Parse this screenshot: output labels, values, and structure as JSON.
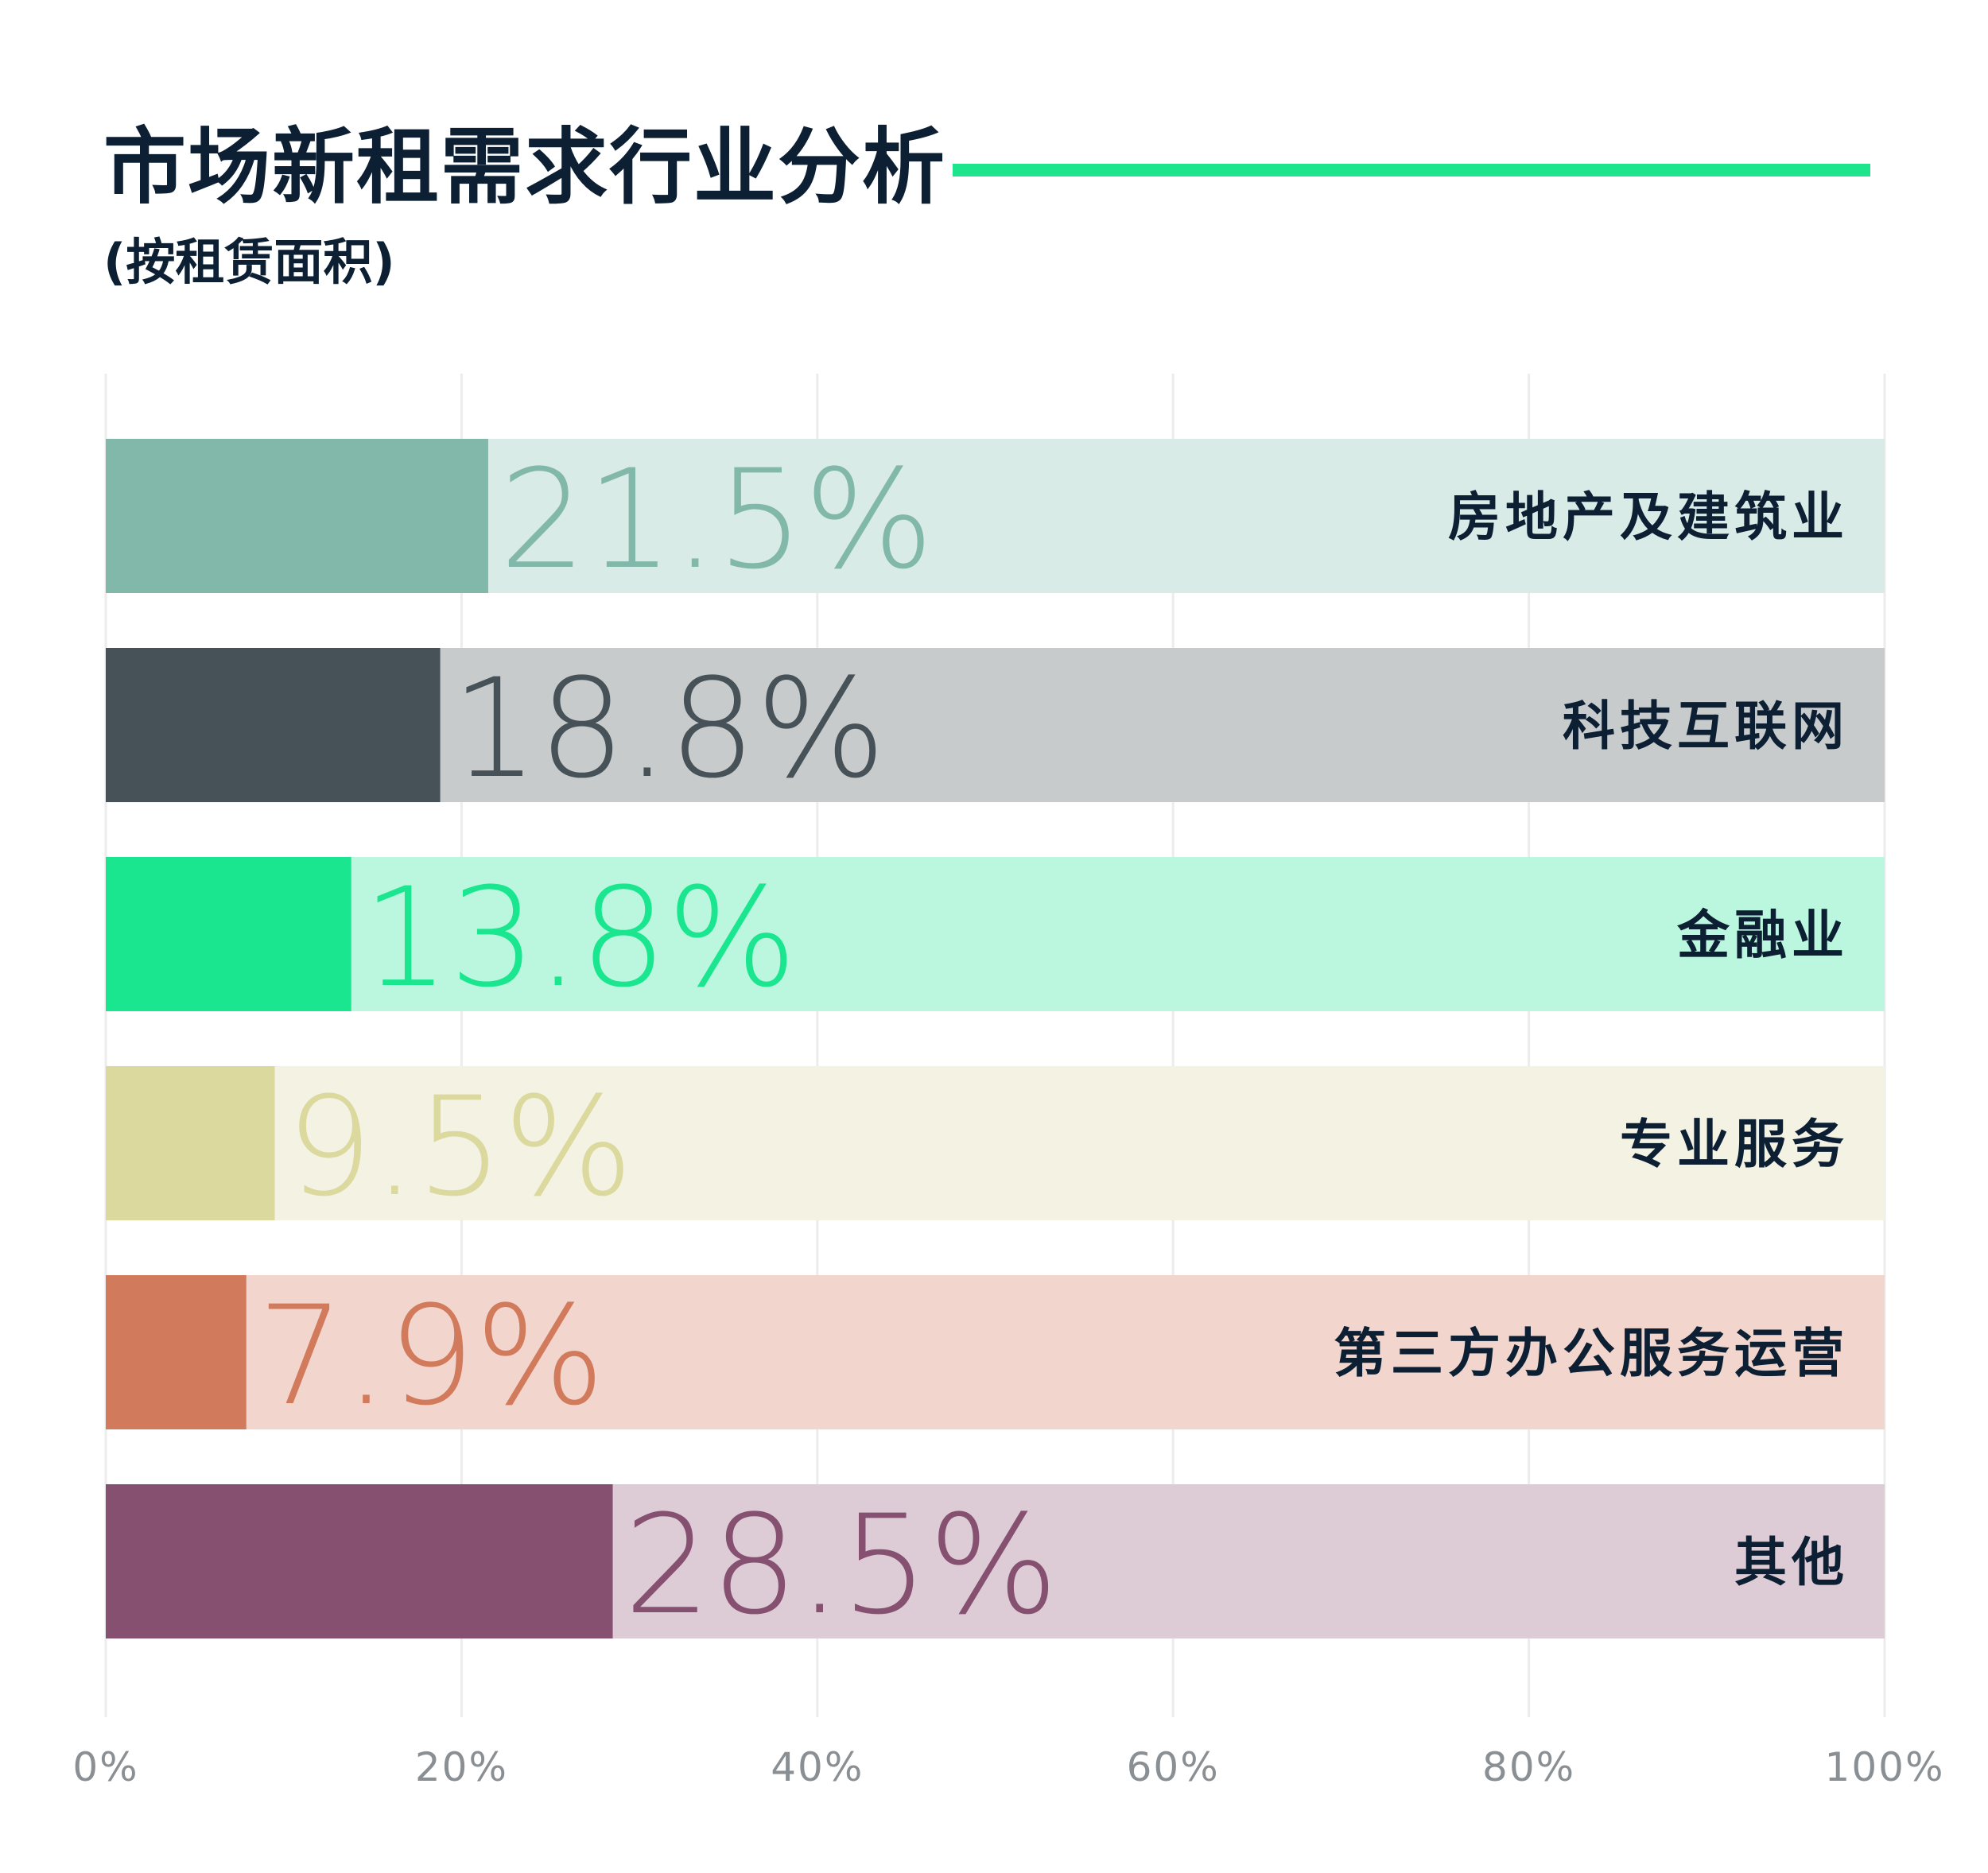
{
  "header": {
    "title": "市场新租需求行业分析",
    "subtitle": "(按租赁面积)",
    "rule_color": "#1de58c"
  },
  "chart_data": {
    "type": "bar",
    "orientation": "horizontal",
    "title": "市场新租需求行业分析",
    "subtitle": "(按租赁面积)",
    "xlim": [
      0,
      100
    ],
    "x_ticks": [
      "0%",
      "20%",
      "40%",
      "60%",
      "80%",
      "100%"
    ],
    "grid": true,
    "categories": [
      "房地产及建筑业",
      "科技互联网",
      "金融业",
      "专业服务",
      "第三方办公服务运营",
      "其他"
    ],
    "values": [
      21.5,
      18.8,
      13.8,
      9.5,
      7.9,
      28.5
    ],
    "value_labels": [
      "21.5%",
      "18.8%",
      "13.8%",
      "9.5%",
      "7.9%",
      "28.5%"
    ],
    "colors": {
      "bars": [
        "#82b8aa",
        "#465257",
        "#1ae68f",
        "#dcd99f",
        "#d17a5c",
        "#865071"
      ],
      "tracks": [
        "#d9ebe6",
        "#c8cbcc",
        "#baf7de",
        "#f4f3e3",
        "#f2d6cd",
        "#ddccd5"
      ],
      "value_labels": [
        "#82b8aa",
        "#465257",
        "#1ae68f",
        "#dcd99f",
        "#d17a5c",
        "#865071"
      ],
      "category_text": "#0c1f33",
      "grid": "#ececec",
      "tick_text": "#8a8f94"
    }
  }
}
